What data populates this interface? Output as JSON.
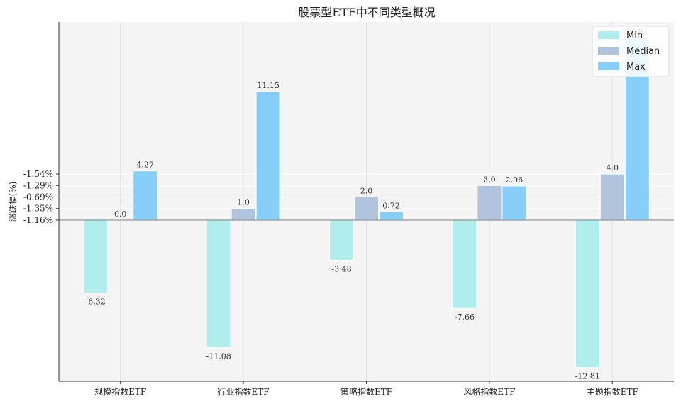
{
  "chart_data": {
    "type": "bar",
    "title": "股票型ETF中不同类型概况",
    "xlabel": "",
    "ylabel": "涨跌幅(%)",
    "categories": [
      "规模指数ETF",
      "行业指数ETF",
      "策略指数ETF",
      "风格指数ETF",
      "主题指数ETF"
    ],
    "series": [
      {
        "name": "Min",
        "color": "#b0eded",
        "values": [
          -6.32,
          -11.08,
          -3.48,
          -7.66,
          -12.81
        ]
      },
      {
        "name": "Median",
        "color": "#b0c4de",
        "values": [
          0.0,
          1.0,
          2.0,
          3.0,
          4.0
        ]
      },
      {
        "name": "Max",
        "color": "#87cefa",
        "values": [
          4.27,
          11.15,
          0.72,
          2.96,
          15.81
        ]
      }
    ],
    "value_labels": [
      [
        "-6.32",
        "-11.08",
        "-3.48",
        "-7.66",
        "-12.81"
      ],
      [
        "0.0",
        "1.0",
        "2.0",
        "3.0",
        "4.0"
      ],
      [
        "4.27",
        "11.15",
        "0.72",
        "2.96",
        "15.81"
      ]
    ],
    "ytick_labels": [
      {
        "value": 4.0,
        "label": "-1.54%"
      },
      {
        "value": 3.0,
        "label": "-1.29%"
      },
      {
        "value": 2.0,
        "label": "-0.69%"
      },
      {
        "value": 1.0,
        "label": "-1.35%"
      },
      {
        "value": 0.0,
        "label": "-1.16%"
      }
    ],
    "ylim": [
      -14.0,
      17.2
    ],
    "grid": true,
    "legend_position": "top-right",
    "background": "#f4f4f4",
    "baseline_color": "#808080"
  }
}
